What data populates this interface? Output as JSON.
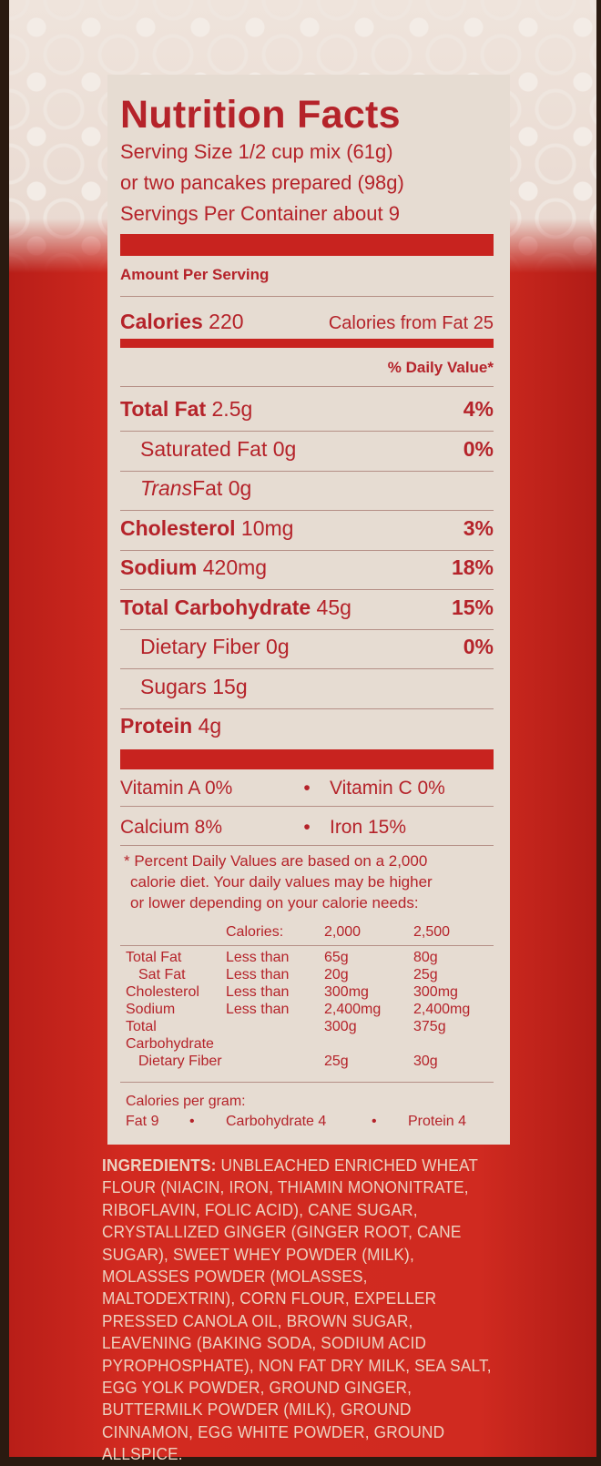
{
  "label": {
    "title": "Nutrition Facts",
    "serving_lines": [
      "Serving Size 1/2 cup mix (61g)",
      "or two pancakes prepared (98g)",
      "Servings Per Container about 9"
    ],
    "amount_per_serving": "Amount Per Serving",
    "calories_label": "Calories",
    "calories_value": "220",
    "calories_from_fat": "Calories from Fat 25",
    "daily_value_header": "% Daily Value*",
    "nutrients": [
      {
        "name": "Total Fat",
        "amount": "2.5g",
        "dv": "4%",
        "bold": true
      },
      {
        "name": "Saturated Fat",
        "amount": "0g",
        "dv": "0%",
        "bold": false
      },
      {
        "name": "Trans",
        "name2": " Fat",
        "amount": "0g",
        "dv": "",
        "bold": false
      },
      {
        "name": "Cholesterol",
        "amount": "10mg",
        "dv": "3%",
        "bold": true
      },
      {
        "name": "Sodium",
        "amount": "420mg",
        "dv": "18%",
        "bold": true
      },
      {
        "name": "Total Carbohydrate",
        "amount": "45g",
        "dv": "15%",
        "bold": true
      },
      {
        "name": "Dietary Fiber",
        "amount": "0g",
        "dv": "0%",
        "bold": false
      },
      {
        "name": "Sugars",
        "amount": "15g",
        "dv": "",
        "bold": false
      },
      {
        "name": "Protein",
        "amount": "4g",
        "dv": "",
        "bold": true
      }
    ],
    "vitamins": [
      [
        "Vitamin A 0%",
        "Vitamin C 0%"
      ],
      [
        "Calcium 8%",
        "Iron 15%"
      ]
    ],
    "footnote": [
      "* Percent Daily Values are based on a 2,000",
      "calorie diet. Your daily values may be higher",
      "or lower depending on your calorie needs:"
    ],
    "dv_table": {
      "header": [
        "",
        "Calories:",
        "2,000",
        "2,500"
      ],
      "rows": [
        [
          "Total Fat",
          "Less than",
          "65g",
          "80g"
        ],
        [
          " Sat Fat",
          "Less than",
          "20g",
          "25g"
        ],
        [
          "Cholesterol",
          "Less than",
          "300mg",
          "300mg"
        ],
        [
          "Sodium",
          "Less than",
          "2,400mg",
          "2,400mg"
        ],
        [
          "Total Carbohydrate",
          "",
          "300g",
          "375g"
        ],
        [
          " Dietary Fiber",
          "",
          "25g",
          "30g"
        ]
      ]
    },
    "calories_per_gram": "Calories per gram:",
    "per_gram": [
      "Fat 9",
      "Carbohydrate 4",
      "Protein 4"
    ]
  },
  "ingredients": {
    "label": "INGREDIENTS:",
    "text": "UNBLEACHED ENRICHED WHEAT FLOUR (NIACIN, IRON, THIAMIN MONONITRATE, RIBOFLAVIN, FOLIC ACID), CANE SUGAR, CRYSTALLIZED GINGER (GINGER ROOT, CANE SUGAR), SWEET WHEY POWDER (MILK), MOLASSES POWDER (MOLASSES, MALTODEXTRIN), CORN FLOUR, EXPELLER PRESSED CANOLA OIL, BROWN SUGAR, LEAVENING (BAKING SODA, SODIUM ACID PYROPHOSPHATE), NON FAT DRY MILK, SEA SALT, EGG YOLK POWDER, GROUND GINGER, BUTTERMILK POWDER (MILK), GROUND CINNAMON, EGG WHITE POWDER, GROUND ALLSPICE."
  },
  "colors": {
    "box_red": "#d02a20",
    "label_bg": "#e6dcd2",
    "label_text": "#b5232a",
    "ingredient_text": "#ecd2c0"
  }
}
